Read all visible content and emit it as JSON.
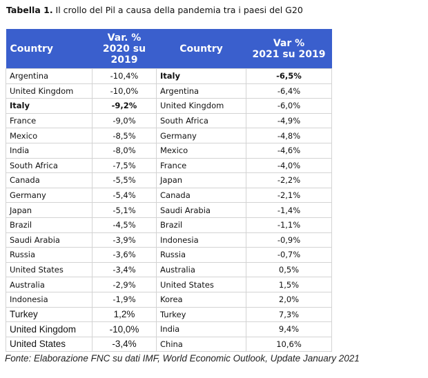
{
  "title": {
    "bold": "Tabella 1.",
    "rest": " Il crollo del Pil a causa della pandemia tra i paesi del G20"
  },
  "headers": {
    "country1": "Country",
    "var2020_line1": "Var. %",
    "var2020_line2": "2020 su",
    "var2020_line3": "2019",
    "country2": "Country",
    "var2021_line1": "Var %",
    "var2021_line2": "2021 su 2019"
  },
  "rows": [
    {
      "c1": {
        "t": "Argentina"
      },
      "c2": {
        "t": "-10,4%"
      },
      "c3": {
        "t": "Italy",
        "b": true
      },
      "c4": {
        "t": "-6,5%",
        "b": true
      }
    },
    {
      "c1": {
        "t": "United Kingdom"
      },
      "c2": {
        "t": "-10,0%"
      },
      "c3": {
        "t": "Argentina"
      },
      "c4": {
        "t": "-6,4%"
      }
    },
    {
      "c1": {
        "t": "Italy",
        "b": true
      },
      "c2": {
        "t": "-9,2%",
        "b": true
      },
      "c3": {
        "t": "United Kingdom"
      },
      "c4": {
        "t": "-6,0%"
      }
    },
    {
      "c1": {
        "t": "France"
      },
      "c2": {
        "t": "-9,0%"
      },
      "c3": {
        "t": "South Africa"
      },
      "c4": {
        "t": "-4,9%"
      }
    },
    {
      "c1": {
        "t": "Mexico"
      },
      "c2": {
        "t": "-8,5%"
      },
      "c3": {
        "t": "Germany"
      },
      "c4": {
        "t": "-4,8%"
      }
    },
    {
      "c1": {
        "t": "India"
      },
      "c2": {
        "t": "-8,0%"
      },
      "c3": {
        "t": "Mexico"
      },
      "c4": {
        "t": "-4,6%"
      }
    },
    {
      "c1": {
        "t": "South Africa"
      },
      "c2": {
        "t": "-7,5%"
      },
      "c3": {
        "t": "France"
      },
      "c4": {
        "t": "-4,0%"
      }
    },
    {
      "c1": {
        "t": "Canada"
      },
      "c2": {
        "t": "-5,5%"
      },
      "c3": {
        "t": "Japan"
      },
      "c4": {
        "t": "-2,2%"
      }
    },
    {
      "c1": {
        "t": "Germany"
      },
      "c2": {
        "t": "-5,4%"
      },
      "c3": {
        "t": "Canada"
      },
      "c4": {
        "t": "-2,1%"
      }
    },
    {
      "c1": {
        "t": "Japan"
      },
      "c2": {
        "t": "-5,1%"
      },
      "c3": {
        "t": "Saudi Arabia"
      },
      "c4": {
        "t": "-1,4%"
      }
    },
    {
      "c1": {
        "t": "Brazil"
      },
      "c2": {
        "t": "-4,5%"
      },
      "c3": {
        "t": "Brazil"
      },
      "c4": {
        "t": "-1,1%"
      }
    },
    {
      "c1": {
        "t": "Saudi Arabia"
      },
      "c2": {
        "t": "-3,9%"
      },
      "c3": {
        "t": "Indonesia"
      },
      "c4": {
        "t": "-0,9%"
      }
    },
    {
      "c1": {
        "t": "Russia"
      },
      "c2": {
        "t": "-3,6%"
      },
      "c3": {
        "t": "Russia"
      },
      "c4": {
        "t": "-0,7%"
      }
    },
    {
      "c1": {
        "t": "United States"
      },
      "c2": {
        "t": "-3,4%"
      },
      "c3": {
        "t": "Australia"
      },
      "c4": {
        "t": "0,5%"
      }
    },
    {
      "c1": {
        "t": "Australia"
      },
      "c2": {
        "t": "-2,9%"
      },
      "c3": {
        "t": "United States"
      },
      "c4": {
        "t": "1,5%"
      }
    },
    {
      "c1": {
        "t": "Indonesia"
      },
      "c2": {
        "t": "-1,9%"
      },
      "c3": {
        "t": "Korea"
      },
      "c4": {
        "t": "2,0%"
      }
    },
    {
      "c1": {
        "t": "Turkey",
        "big": true
      },
      "c2": {
        "t": "1,2%",
        "big": true
      },
      "c3": {
        "t": "Turkey"
      },
      "c4": {
        "t": "7,3%"
      }
    },
    {
      "c1": {
        "t": "United Kingdom",
        "big": true
      },
      "c2": {
        "t": "-10,0%",
        "big": true
      },
      "c3": {
        "t": "India"
      },
      "c4": {
        "t": "9,4%"
      }
    },
    {
      "c1": {
        "t": "United States",
        "big": true
      },
      "c2": {
        "t": "-3,4%",
        "big": true
      },
      "c3": {
        "t": "China"
      },
      "c4": {
        "t": "10,6%"
      }
    }
  ],
  "footer": "Fonte: Elaborazione FNC su dati IMF, World Economic Outlook, Update January 2021"
}
